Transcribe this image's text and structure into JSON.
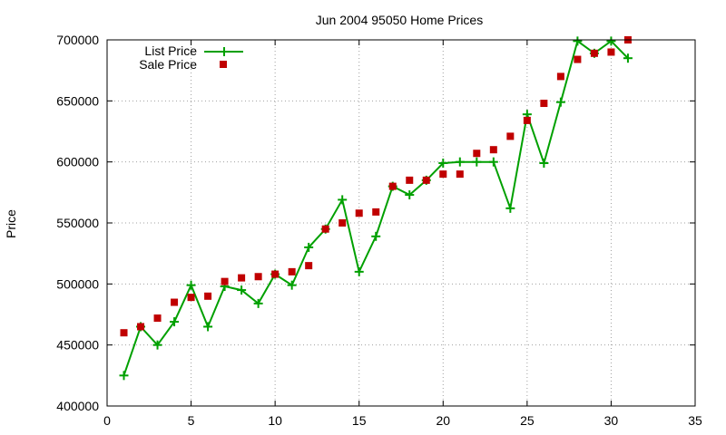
{
  "chart_data": {
    "type": "line",
    "title": "Jun 2004 95050 Home Prices",
    "xlabel": "",
    "ylabel": "Price",
    "xlim": [
      0,
      35
    ],
    "ylim": [
      400000,
      700000
    ],
    "xticks": [
      "0",
      "5",
      "10",
      "15",
      "20",
      "25",
      "30",
      "35"
    ],
    "yticks": [
      "400000",
      "450000",
      "500000",
      "550000",
      "600000",
      "650000",
      "700000"
    ],
    "grid": true,
    "legend_position": "top-left",
    "x": [
      1,
      2,
      3,
      4,
      5,
      6,
      7,
      8,
      9,
      10,
      11,
      12,
      13,
      14,
      15,
      16,
      17,
      18,
      19,
      20,
      21,
      22,
      23,
      24,
      25,
      26,
      27,
      28,
      29,
      30,
      31
    ],
    "series": [
      {
        "name": "List Price",
        "style": "lines+points",
        "color": "#00a000",
        "values": [
          425000,
          465000,
          450000,
          469000,
          499000,
          465000,
          498000,
          495000,
          484000,
          508000,
          499000,
          530000,
          545000,
          569000,
          510000,
          539000,
          580000,
          573000,
          585000,
          599000,
          600000,
          600000,
          600000,
          562000,
          639000,
          599000,
          649000,
          699000,
          689000,
          699000,
          685000
        ]
      },
      {
        "name": "Sale Price",
        "style": "points",
        "color": "#c00000",
        "values": [
          460000,
          465000,
          472000,
          485000,
          489000,
          490000,
          502000,
          505000,
          506000,
          508000,
          510000,
          515000,
          545000,
          550000,
          558000,
          559000,
          580000,
          585000,
          585000,
          590000,
          590000,
          607000,
          610000,
          621000,
          634000,
          648000,
          670000,
          684000,
          689000,
          690000,
          700000
        ]
      }
    ]
  }
}
